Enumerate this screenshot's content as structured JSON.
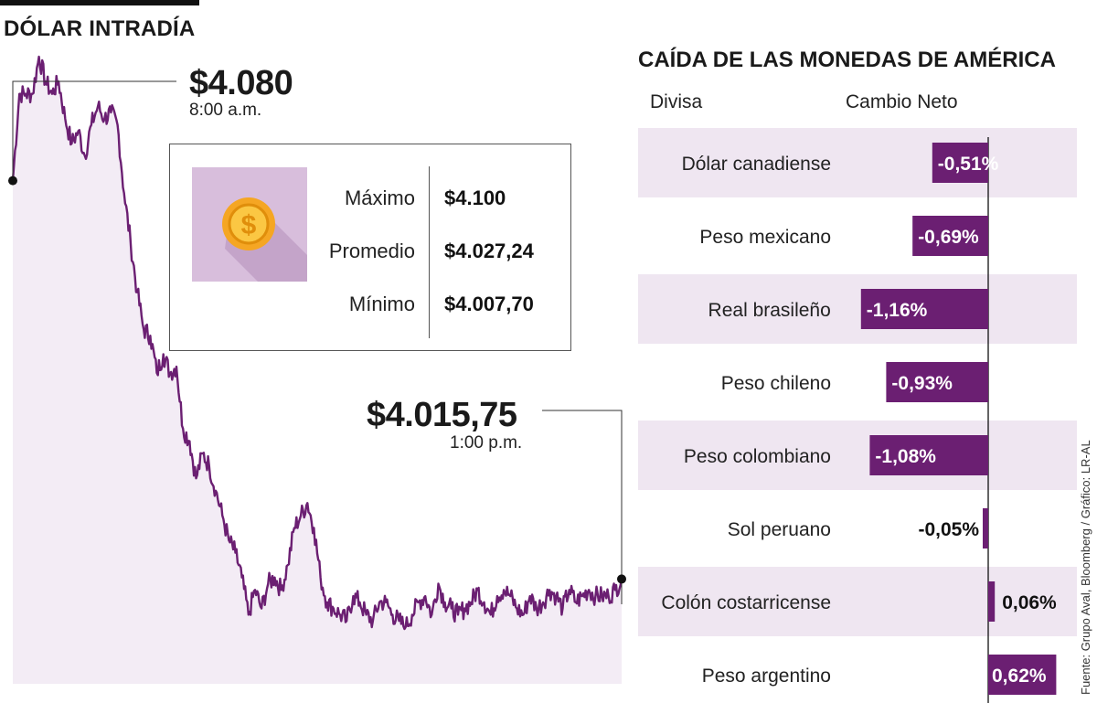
{
  "intraday": {
    "title": "DÓLAR INTRADÍA",
    "open_value": "$4.080",
    "open_time": "8:00 a.m.",
    "close_value": "$4.015,75",
    "close_time": "1:00 p.m.",
    "stats": [
      {
        "label": "Máximo",
        "value": "$4.100"
      },
      {
        "label": "Promedio",
        "value": "$4.027,24"
      },
      {
        "label": "Mínimo",
        "value": "$4.007,70"
      }
    ],
    "coin_icon": "dollar-coin-icon",
    "colors": {
      "line": "#6b1f72",
      "area": "#f3ecf5",
      "tile": "#d8bedc",
      "coin": "#f5a623"
    }
  },
  "currencies": {
    "title": "CAÍDA DE LAS MONEDAS DE AMÉRICA",
    "col_currency": "Divisa",
    "col_change": "Cambio Neto",
    "colors": {
      "bar": "#6b1f72",
      "stripe": "#efe6f1"
    }
  },
  "source": "Fuente: Grupo Aval, Bloomberg / Gráfico: LR-AL",
  "chart_data": [
    {
      "type": "line",
      "title": "DÓLAR INTRADÍA",
      "x_range": [
        "8:00 a.m.",
        "1:00 p.m."
      ],
      "ylim": [
        4007.7,
        4100
      ],
      "key_points": [
        {
          "time": "8:00 a.m.",
          "value": 4080
        },
        {
          "time": "1:00 p.m.",
          "value": 4015.75
        }
      ],
      "values": [
        4080,
        4094,
        4094,
        4094,
        4100,
        4096,
        4094,
        4096,
        4090,
        4086,
        4088,
        4084,
        4089,
        4092,
        4090,
        4091,
        4089,
        4078,
        4070,
        4062,
        4056,
        4055,
        4049,
        4052,
        4049,
        4050,
        4040,
        4038,
        4032,
        4036,
        4034,
        4030,
        4026,
        4022,
        4020,
        4016,
        4010,
        4014,
        4011,
        4015,
        4016,
        4014,
        4018,
        4024,
        4026,
        4028,
        4024,
        4016,
        4012,
        4011,
        4010,
        4009,
        4013,
        4012,
        4010,
        4009,
        4012,
        4012,
        4010,
        4009,
        4008,
        4010,
        4012,
        4013,
        4010,
        4015,
        4012,
        4011,
        4010,
        4011,
        4012,
        4014,
        4012,
        4010,
        4013,
        4014,
        4013,
        4011,
        4010,
        4013,
        4011,
        4012,
        4014,
        4013,
        4011,
        4014,
        4012,
        4013,
        4014,
        4013,
        4013,
        4013,
        4014,
        4015.75
      ],
      "stats": {
        "max": 4100,
        "mean": 4027.24,
        "min": 4007.7
      }
    },
    {
      "type": "bar",
      "orientation": "horizontal",
      "title": "CAÍDA DE LAS MONEDAS DE AMÉRICA",
      "xlabel": "Cambio Neto",
      "ylabel": "Divisa",
      "categories": [
        "Dólar canadiense",
        "Peso mexicano",
        "Real brasileño",
        "Peso chileno",
        "Peso colombiano",
        "Sol peruano",
        "Colón costarricense",
        "Peso argentino"
      ],
      "values": [
        -0.51,
        -0.69,
        -1.16,
        -0.93,
        -1.08,
        -0.05,
        0.06,
        0.62
      ],
      "labels": [
        "-0,51%",
        "-0,69%",
        "-1,16%",
        "-0,93%",
        "-1,08%",
        "-0,05%",
        "0,06%",
        "0,62%"
      ],
      "unit": "%"
    }
  ]
}
